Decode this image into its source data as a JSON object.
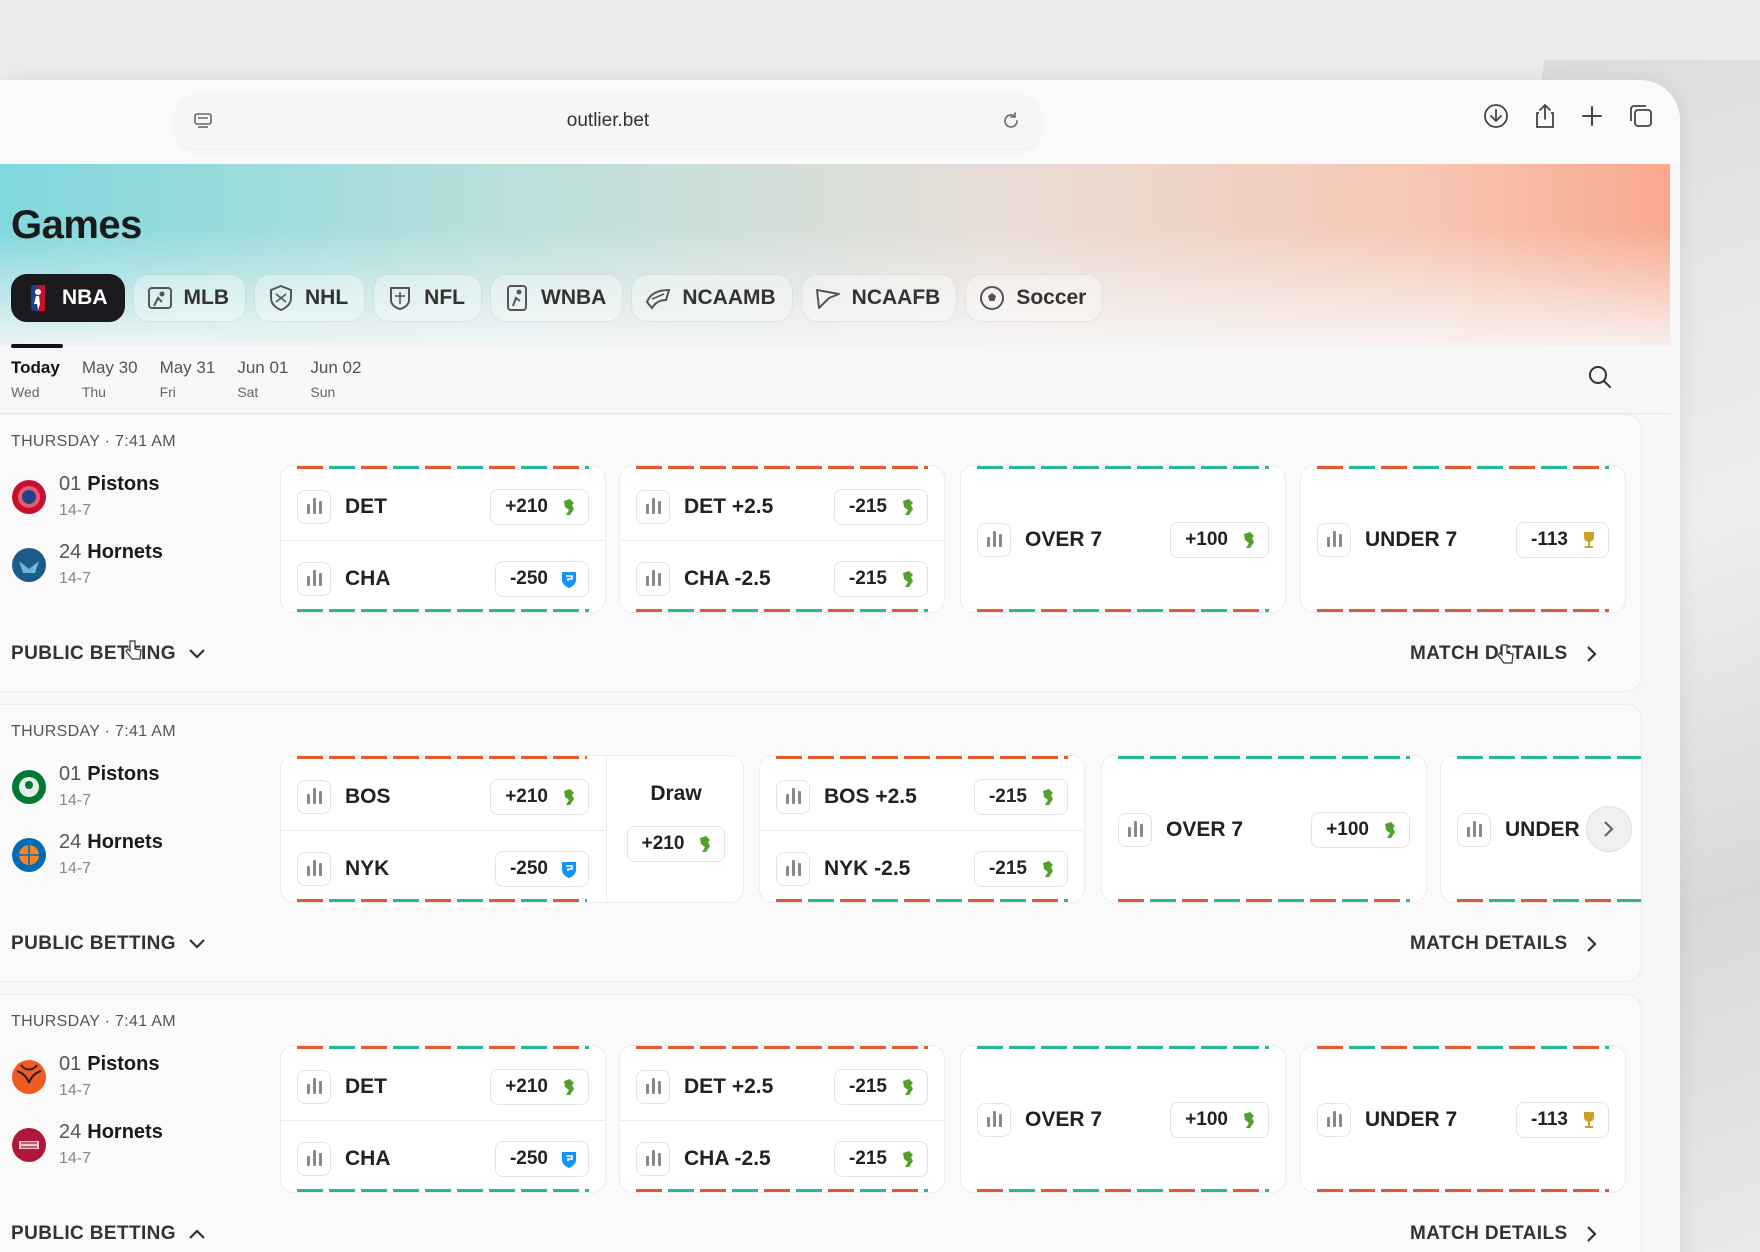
{
  "browser": {
    "url": "outlier.bet"
  },
  "header": {
    "title": "Games"
  },
  "sports": [
    {
      "label": "NBA",
      "icon": "nba-icon",
      "active": true
    },
    {
      "label": "MLB",
      "icon": "mlb-icon"
    },
    {
      "label": "NHL",
      "icon": "nhl-icon"
    },
    {
      "label": "NFL",
      "icon": "nfl-icon"
    },
    {
      "label": "WNBA",
      "icon": "wnba-icon"
    },
    {
      "label": "NCAAMB",
      "icon": "ncaamb-icon"
    },
    {
      "label": "NCAAFB",
      "icon": "ncaafb-icon"
    },
    {
      "label": "Soccer",
      "icon": "soccer-ball-icon"
    }
  ],
  "dates": [
    {
      "day": "Today",
      "weekday": "Wed",
      "active": true
    },
    {
      "day": "May 30",
      "weekday": "Thu"
    },
    {
      "day": "May 31",
      "weekday": "Fri"
    },
    {
      "day": "Jun 01",
      "weekday": "Sat"
    },
    {
      "day": "Jun 02",
      "weekday": "Sun"
    }
  ],
  "games": [
    {
      "when": "THURSDAY · 7:41 AM",
      "teams": [
        {
          "seed": "01",
          "name": "Pistons",
          "record": "14-7",
          "color": "#c8102e"
        },
        {
          "seed": "24",
          "name": "Hornets",
          "record": "14-7",
          "color": "#1d5b8a"
        }
      ],
      "moneyline": [
        {
          "label": "DET",
          "odds": "+210",
          "book": "draftkings-icon"
        },
        {
          "label": "CHA",
          "odds": "-250",
          "book": "fanduel-icon"
        }
      ],
      "spread": [
        {
          "label": "DET +2.5",
          "odds": "-215",
          "book": "draftkings-icon"
        },
        {
          "label": "CHA -2.5",
          "odds": "-215",
          "book": "draftkings-icon"
        }
      ],
      "over": {
        "label": "OVER 7",
        "odds": "+100",
        "book": "draftkings-icon"
      },
      "under": {
        "label": "UNDER 7",
        "odds": "-113",
        "book": "trophy-icon"
      },
      "public_betting": "PUBLIC BETTING",
      "match_details": "MATCH DETAILS"
    },
    {
      "when": "THURSDAY · 7:41 AM",
      "teams": [
        {
          "seed": "01",
          "name": "Pistons",
          "record": "14-7",
          "color": "#007a33"
        },
        {
          "seed": "24",
          "name": "Hornets",
          "record": "14-7",
          "color": "#f58426"
        }
      ],
      "moneyline": [
        {
          "label": "BOS",
          "odds": "+210",
          "book": "draftkings-icon"
        },
        {
          "label": "NYK",
          "odds": "-250",
          "book": "fanduel-icon"
        }
      ],
      "draw": {
        "label": "Draw",
        "odds": "+210",
        "book": "draftkings-icon"
      },
      "spread": [
        {
          "label": "BOS +2.5",
          "odds": "-215",
          "book": "draftkings-icon"
        },
        {
          "label": "NYK -2.5",
          "odds": "-215",
          "book": "draftkings-icon"
        }
      ],
      "over": {
        "label": "OVER 7",
        "odds": "+100",
        "book": "draftkings-icon"
      },
      "under": {
        "label": "UNDER"
      },
      "public_betting": "PUBLIC BETTING",
      "match_details": "MATCH DETAILS"
    },
    {
      "when": "THURSDAY · 7:41 AM",
      "teams": [
        {
          "seed": "01",
          "name": "Pistons",
          "record": "14-7",
          "color": "#f15a22"
        },
        {
          "seed": "24",
          "name": "Hornets",
          "record": "14-7",
          "color": "#b0183a"
        }
      ],
      "moneyline": [
        {
          "label": "DET",
          "odds": "+210",
          "book": "draftkings-icon"
        },
        {
          "label": "CHA",
          "odds": "-250",
          "book": "fanduel-icon"
        }
      ],
      "spread": [
        {
          "label": "DET +2.5",
          "odds": "-215",
          "book": "draftkings-icon"
        },
        {
          "label": "CHA -2.5",
          "odds": "-215",
          "book": "draftkings-icon"
        }
      ],
      "over": {
        "label": "OVER 7",
        "odds": "+100",
        "book": "draftkings-icon"
      },
      "under": {
        "label": "UNDER 7",
        "odds": "-113",
        "book": "trophy-icon"
      },
      "public_betting": "PUBLIC BETTING",
      "match_details": "MATCH DETAILS"
    }
  ],
  "colors": {
    "accent_red": "#e05b32",
    "accent_green": "#27b895",
    "book_green": "#53a02b",
    "book_blue": "#1493ff",
    "trophy_gold": "#c9a227"
  }
}
